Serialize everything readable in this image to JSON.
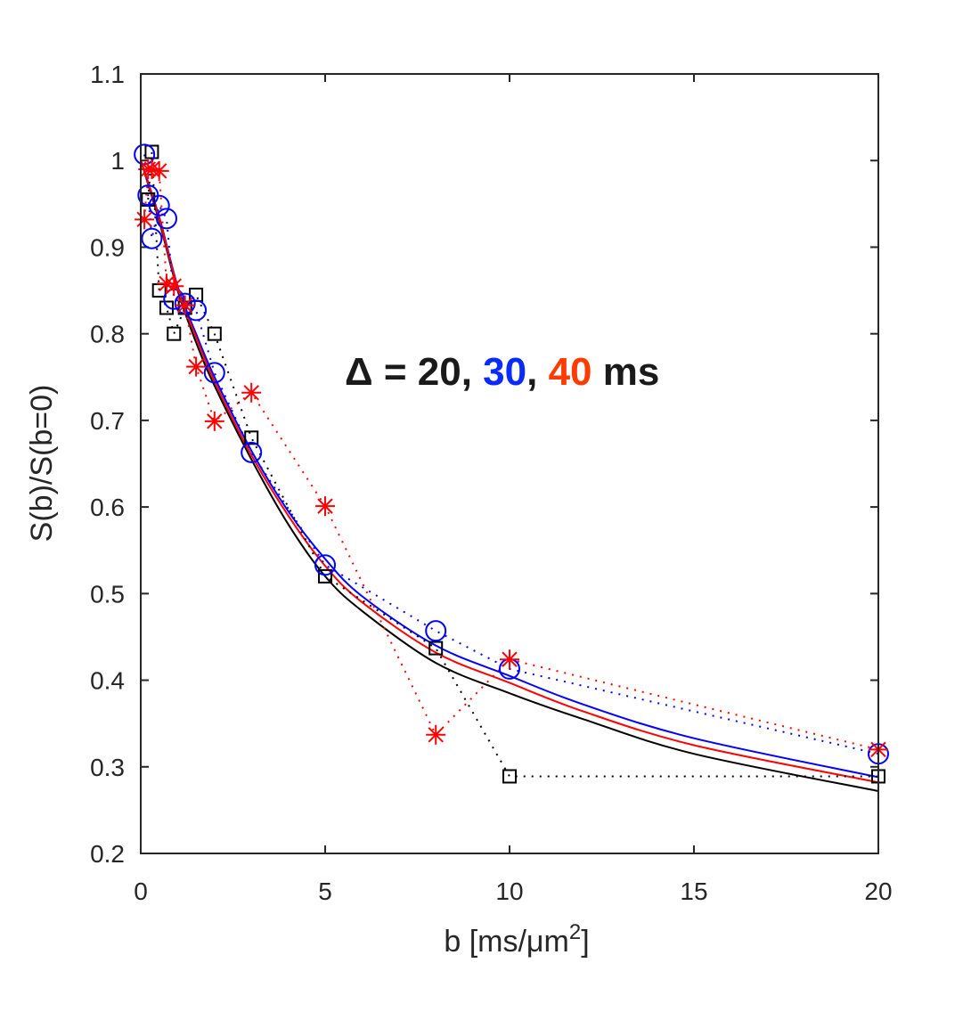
{
  "chart_data": {
    "type": "scatter",
    "xlabel": "b [ms/μm",
    "xlabel_sup": "2",
    "xlabel_end": "]",
    "ylabel": "S(b)/S(b=0)",
    "xlim": [
      0,
      20
    ],
    "ylim": [
      0.2,
      1.1
    ],
    "xticks": [
      0,
      5,
      10,
      15,
      20
    ],
    "yticks": [
      0.2,
      0.3,
      0.4,
      0.5,
      0.6,
      0.7,
      0.8,
      0.9,
      1,
      1.1
    ],
    "ytick_labels": [
      "0.2",
      "0.3",
      "0.4",
      "0.5",
      "0.6",
      "0.7",
      "0.8",
      "0.9",
      "1",
      "1.1"
    ],
    "grid": false,
    "annotation": {
      "parts": [
        {
          "text": "Δ = 20, ",
          "color": "#1a1a1a"
        },
        {
          "text": "30",
          "color": "#0a2bff"
        },
        {
          "text": ", ",
          "color": "#1a1a1a"
        },
        {
          "text": "40",
          "color": "#ff3c00"
        },
        {
          "text": " ms",
          "color": "#1a1a1a"
        }
      ]
    },
    "series": [
      {
        "marker": "square",
        "color": "#000000",
        "x": [
          0.2,
          0.3,
          0.5,
          0.7,
          0.9,
          1.2,
          1.5,
          2,
          3,
          5,
          8,
          10,
          20
        ],
        "y": [
          0.955,
          1.01,
          0.85,
          0.83,
          0.8,
          0.83,
          0.845,
          0.8,
          0.68,
          0.52,
          0.437,
          0.289,
          0.289
        ],
        "fit_x": [
          0,
          0.5,
          1,
          1.5,
          2,
          3,
          4,
          5,
          6,
          8,
          10,
          12,
          15,
          20
        ],
        "fit_y": [
          1,
          0.93,
          0.85,
          0.79,
          0.74,
          0.655,
          0.58,
          0.52,
          0.48,
          0.42,
          0.385,
          0.355,
          0.315,
          0.272
        ]
      },
      {
        "marker": "circle",
        "color": "#0000ff",
        "x": [
          0.1,
          0.2,
          0.3,
          0.5,
          0.7,
          0.9,
          1.2,
          1.5,
          2,
          3,
          5,
          8,
          10,
          20
        ],
        "y": [
          1.007,
          0.96,
          0.91,
          0.948,
          0.933,
          0.84,
          0.835,
          0.827,
          0.755,
          0.663,
          0.533,
          0.457,
          0.413,
          0.315
        ],
        "fit_x": [
          0,
          0.5,
          1,
          1.5,
          2,
          3,
          4,
          5,
          6,
          8,
          10,
          12,
          15,
          20
        ],
        "fit_y": [
          1,
          0.935,
          0.855,
          0.8,
          0.75,
          0.665,
          0.595,
          0.54,
          0.497,
          0.44,
          0.405,
          0.372,
          0.333,
          0.288
        ]
      },
      {
        "marker": "asterisk",
        "color": "#ff0000",
        "x": [
          0.1,
          0.2,
          0.3,
          0.5,
          0.7,
          0.9,
          1.2,
          1.5,
          2,
          3,
          5,
          8,
          10,
          20
        ],
        "y": [
          0.932,
          0.99,
          0.99,
          0.988,
          0.858,
          0.855,
          0.833,
          0.762,
          0.699,
          0.732,
          0.601,
          0.337,
          0.424,
          0.32
        ],
        "fit_x": [
          0,
          0.5,
          1,
          1.5,
          2,
          3,
          4,
          5,
          6,
          8,
          10,
          12,
          15,
          20
        ],
        "fit_y": [
          1,
          0.933,
          0.853,
          0.796,
          0.745,
          0.66,
          0.59,
          0.532,
          0.49,
          0.432,
          0.397,
          0.364,
          0.325,
          0.282
        ]
      }
    ]
  }
}
